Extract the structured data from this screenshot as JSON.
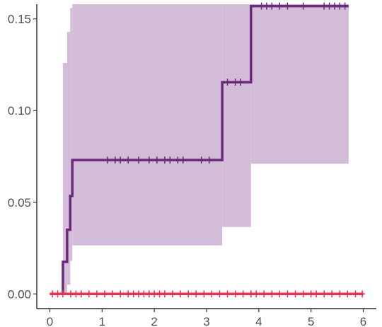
{
  "chart_data": {
    "type": "line",
    "title": "",
    "xlabel": "",
    "ylabel": "",
    "xlim": [
      -0.25,
      6.25
    ],
    "ylim": [
      -0.008,
      0.158
    ],
    "x_ticks": [
      0,
      1,
      2,
      3,
      4,
      5,
      6
    ],
    "x_tick_labels": [
      "0",
      "1",
      "2",
      "3",
      "4",
      "5",
      "6"
    ],
    "y_ticks": [
      0.0,
      0.05,
      0.1,
      0.15
    ],
    "y_tick_labels": [
      "0.00",
      "0.05",
      "0.10",
      "0.15"
    ],
    "grid": false,
    "legend": "none",
    "series": [
      {
        "color": "#6a2a7a",
        "ci_color": "#d3bcd8",
        "steps": [
          [
            0.16,
            0.0
          ],
          [
            0.25,
            0.0175
          ],
          [
            0.33,
            0.035
          ],
          [
            0.39,
            0.0535
          ],
          [
            0.43,
            0.073
          ],
          [
            3.3,
            0.1155
          ],
          [
            3.85,
            0.157
          ],
          [
            5.72,
            0.157
          ]
        ],
        "ci": [
          [
            0.16,
            0.0,
            0.0
          ],
          [
            0.25,
            0.0,
            0.126
          ],
          [
            0.33,
            0.005,
            0.143
          ],
          [
            0.39,
            0.018,
            0.156
          ],
          [
            0.43,
            0.0265,
            0.158
          ],
          [
            3.3,
            0.0365,
            0.158
          ],
          [
            3.85,
            0.071,
            0.158
          ],
          [
            5.72,
            0.071,
            0.158
          ]
        ],
        "censor_x": [
          1.1,
          1.25,
          1.35,
          1.5,
          1.7,
          1.9,
          2.05,
          2.2,
          2.3,
          2.45,
          2.55,
          2.9,
          3.05,
          3.4,
          3.55,
          3.65,
          4.05,
          4.15,
          4.25,
          4.4,
          4.55,
          4.85,
          5.25,
          5.35,
          5.45,
          5.55,
          5.65
        ]
      },
      {
        "color": "#e8304f",
        "steps": [
          [
            0.0,
            0.0
          ],
          [
            6.0,
            0.0
          ]
        ],
        "censor_x": [
          0.05,
          0.15,
          0.25,
          0.4,
          0.5,
          0.6,
          0.75,
          0.9,
          1.05,
          1.2,
          1.35,
          1.5,
          1.6,
          1.7,
          1.8,
          1.9,
          2.0,
          2.1,
          2.2,
          2.35,
          2.5,
          2.65,
          2.8,
          2.95,
          3.1,
          3.25,
          3.4,
          3.55,
          3.7,
          3.85,
          3.95,
          4.1,
          4.25,
          4.4,
          4.55,
          4.7,
          4.85,
          5.0,
          5.1,
          5.25,
          5.4,
          5.55,
          5.7,
          5.85,
          5.98
        ]
      }
    ]
  }
}
